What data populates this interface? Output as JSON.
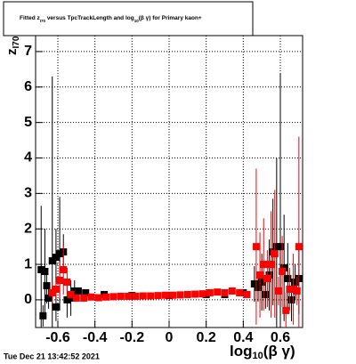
{
  "chart_data": {
    "type": "scatter",
    "title_parts": [
      "Fitted  z",
      "I70",
      " versus TpcTrackLength and log",
      "10",
      "(β γ) for Primary kaon+"
    ],
    "y_label_parts": [
      "z",
      "I70"
    ],
    "x_label_parts": [
      "log",
      "10",
      "(β γ)"
    ],
    "timestamp": "Tue Dec 21 13:42:52 2021",
    "xlim": [
      -0.72,
      0.72
    ],
    "ylim": [
      -0.78,
      7.45
    ],
    "xticks": [
      -0.6,
      -0.4,
      -0.2,
      0,
      0.2,
      0.4,
      0.6
    ],
    "yticks": [
      0,
      1,
      2,
      3,
      4,
      5,
      6,
      7
    ],
    "grid": true,
    "series": [
      {
        "color": "#000000",
        "x": [
          -0.69,
          -0.68,
          -0.67,
          -0.66,
          -0.65,
          -0.63,
          -0.61,
          -0.61,
          -0.59,
          -0.57,
          -0.55,
          -0.53,
          -0.51,
          -0.49,
          -0.45,
          -0.35,
          -0.2,
          0.0,
          0.2,
          0.3,
          0.4,
          0.46,
          0.48,
          0.5,
          0.52,
          0.54,
          0.56,
          0.58,
          0.6,
          0.62,
          0.64,
          0.66,
          0.68,
          0.7
        ],
        "values": [
          0.85,
          -0.45,
          0.8,
          0.4,
          0.05,
          1.1,
          -0.2,
          1.2,
          1.3,
          1.35,
          0.0,
          0.05,
          0.25,
          0.25,
          0.2,
          0.15,
          0.12,
          0.12,
          0.15,
          0.15,
          0.2,
          0.45,
          0.35,
          0.5,
          0.15,
          0.7,
          1.35,
          1.5,
          1.5,
          0.9,
          0.6,
          0.0,
          0.5,
          0.6
        ],
        "errors": [
          1.8,
          0.3,
          1.2,
          0.5,
          0.3,
          5.2,
          0.4,
          0.8,
          1.6,
          0.5,
          0.5,
          0.5,
          0.3,
          0.1,
          0.08,
          0.05,
          0.05,
          0.05,
          0.05,
          0.06,
          0.1,
          0.5,
          0.4,
          0.8,
          0.4,
          1.0,
          1.5,
          2.5,
          4.9,
          1.5,
          1.0,
          0.6,
          0.5,
          1.0
        ]
      },
      {
        "color": "#ff0000",
        "x": [
          -0.63,
          -0.61,
          -0.59,
          -0.57,
          -0.55,
          -0.53,
          -0.5,
          -0.46,
          -0.42,
          -0.38,
          -0.34,
          -0.3,
          -0.26,
          -0.22,
          -0.18,
          -0.14,
          -0.1,
          -0.06,
          -0.02,
          0.02,
          0.06,
          0.1,
          0.14,
          0.18,
          0.22,
          0.26,
          0.3,
          0.34,
          0.38,
          0.42,
          0.47,
          0.49,
          0.51,
          0.53,
          0.55,
          0.57,
          0.59,
          0.61,
          0.63,
          0.65,
          0.67,
          0.69,
          0.7
        ],
        "values": [
          0.2,
          0.3,
          0.55,
          0.85,
          0.5,
          0.15,
          0.05,
          0.05,
          0.08,
          0.06,
          0.08,
          0.09,
          0.1,
          0.1,
          0.1,
          0.11,
          0.11,
          0.12,
          0.13,
          0.13,
          0.14,
          0.15,
          0.16,
          0.17,
          0.2,
          0.22,
          0.2,
          0.25,
          0.2,
          0.15,
          1.5,
          0.7,
          1.0,
          0.6,
          1.0,
          1.3,
          0.25,
          0.8,
          -0.3,
          0.3,
          0.3,
          0.25,
          1.5
        ],
        "errors": [
          0.3,
          0.2,
          0.5,
          0.7,
          0.4,
          0.1,
          0.08,
          0.05,
          0.05,
          0.05,
          0.05,
          0.05,
          0.05,
          0.05,
          0.05,
          0.05,
          0.05,
          0.05,
          0.05,
          0.05,
          0.05,
          0.05,
          0.05,
          0.05,
          0.05,
          0.06,
          0.06,
          0.08,
          0.08,
          0.1,
          2.2,
          1.2,
          1.3,
          0.8,
          1.5,
          1.8,
          0.4,
          1.0,
          0.5,
          0.6,
          1.0,
          0.4,
          3.1
        ]
      }
    ]
  }
}
